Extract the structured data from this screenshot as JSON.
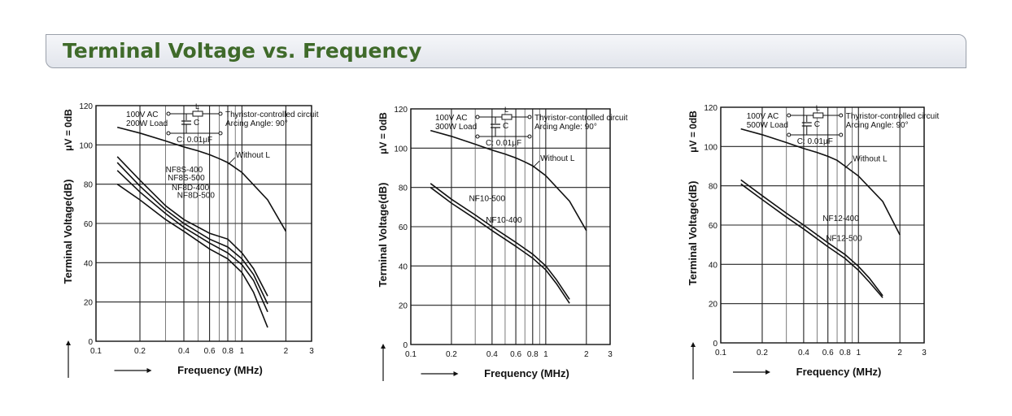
{
  "header": {
    "title": "Terminal Voltage vs. Frequency"
  },
  "chart_data": [
    {
      "type": "line",
      "xscale": "log",
      "xlim": [
        0.1,
        3
      ],
      "ylim": [
        0,
        120
      ],
      "x_ticks": [
        "0.1",
        "0.2",
        "0.4",
        "0.6",
        "0.8",
        "1",
        "2",
        "3"
      ],
      "y_ticks": [
        "0",
        "20",
        "40",
        "60",
        "80",
        "100",
        "120"
      ],
      "xlabel": "Frequency (MHz)",
      "ylabel": "Terminal Voltage(dB)",
      "ylabel_unit": "μV = 0dB",
      "circuit": {
        "source": "100V AC",
        "load": "200W Load",
        "l_label": "L",
        "c_label": "C",
        "c_value": "C: 0.01μF",
        "desc1": "Thyristor-controlled circuit",
        "desc2": "Arcing Angle: 90°"
      },
      "series": [
        {
          "name": "Without L",
          "x": [
            0.14,
            0.2,
            0.3,
            0.4,
            0.5,
            0.6,
            0.7,
            0.8,
            1.0,
            1.5,
            2.0
          ],
          "y": [
            109,
            106,
            102,
            99,
            97,
            95,
            93,
            91,
            86,
            72,
            56
          ]
        },
        {
          "name": "NF8S-400",
          "x": [
            0.14,
            0.2,
            0.3,
            0.4,
            0.6,
            0.8,
            1.0,
            1.2,
            1.5
          ],
          "y": [
            94,
            82,
            69,
            62,
            55,
            52,
            45,
            37,
            23
          ]
        },
        {
          "name": "NF8S-500",
          "x": [
            0.14,
            0.2,
            0.3,
            0.4,
            0.6,
            0.8,
            1.0,
            1.2,
            1.5
          ],
          "y": [
            91,
            79,
            67,
            60,
            52,
            48,
            42,
            34,
            19
          ]
        },
        {
          "name": "NF8D-400",
          "x": [
            0.14,
            0.2,
            0.3,
            0.4,
            0.6,
            0.8,
            1.0,
            1.2,
            1.5
          ],
          "y": [
            87,
            76,
            65,
            58,
            50,
            45,
            39,
            31,
            15
          ]
        },
        {
          "name": "NF8D-500",
          "x": [
            0.14,
            0.2,
            0.3,
            0.4,
            0.6,
            0.8,
            1.0,
            1.2,
            1.5
          ],
          "y": [
            80,
            72,
            62,
            56,
            47,
            42,
            35,
            25,
            7
          ]
        }
      ]
    },
    {
      "type": "line",
      "xscale": "log",
      "xlim": [
        0.1,
        3
      ],
      "ylim": [
        0,
        120
      ],
      "x_ticks": [
        "0.1",
        "0.2",
        "0.4",
        "0.6",
        "0.8",
        "1",
        "2",
        "3"
      ],
      "y_ticks": [
        "0",
        "20",
        "40",
        "60",
        "80",
        "100",
        "120"
      ],
      "xlabel": "Frequency (MHz)",
      "ylabel": "Terminal Voltage(dB)",
      "ylabel_unit": "μV = 0dB",
      "circuit": {
        "source": "100V AC",
        "load": "300W Load",
        "l_label": "L",
        "c_label": "C",
        "c_value": "C: 0.01μF",
        "desc1": "Thyristor-controlled circuit",
        "desc2": "Arcing Angle: 90°"
      },
      "series": [
        {
          "name": "Without L",
          "x": [
            0.14,
            0.2,
            0.3,
            0.4,
            0.5,
            0.6,
            0.7,
            0.8,
            1.0,
            1.5,
            2.0
          ],
          "y": [
            109,
            106,
            102,
            99,
            97,
            95,
            93,
            91,
            86,
            73,
            58
          ]
        },
        {
          "name": "NF10-500",
          "x": [
            0.14,
            0.2,
            0.3,
            0.4,
            0.6,
            0.8,
            1.0,
            1.2,
            1.5
          ],
          "y": [
            82,
            74,
            66,
            60,
            52,
            46,
            40,
            33,
            23
          ]
        },
        {
          "name": "NF10-400",
          "x": [
            0.14,
            0.2,
            0.3,
            0.4,
            0.6,
            0.8,
            1.0,
            1.2,
            1.5
          ],
          "y": [
            80,
            72,
            64,
            58,
            50,
            44,
            38,
            31,
            21
          ]
        }
      ]
    },
    {
      "type": "line",
      "xscale": "log",
      "xlim": [
        0.1,
        3
      ],
      "ylim": [
        0,
        120
      ],
      "x_ticks": [
        "0.1",
        "0.2",
        "0.4",
        "0.6",
        "0.8",
        "1",
        "2",
        "3"
      ],
      "y_ticks": [
        "0",
        "20",
        "40",
        "60",
        "80",
        "100",
        "120"
      ],
      "xlabel": "Frequency (MHz)",
      "ylabel": "Terminal Voltage(dB)",
      "ylabel_unit": "μV = 0dB",
      "circuit": {
        "source": "100V AC",
        "load": "500W Load",
        "l_label": "L",
        "c_label": "C",
        "c_value": "C: 0.01μF",
        "desc1": "Thyristor-controlled circuit",
        "desc2": "Arcing Angle: 90°"
      },
      "series": [
        {
          "name": "Without L",
          "x": [
            0.14,
            0.2,
            0.3,
            0.4,
            0.5,
            0.6,
            0.7,
            0.8,
            1.0,
            1.5,
            2.0
          ],
          "y": [
            109,
            106,
            102,
            99,
            97,
            95,
            93,
            90,
            85,
            72,
            55
          ]
        },
        {
          "name": "NF12-400",
          "x": [
            0.14,
            0.2,
            0.3,
            0.4,
            0.6,
            0.8,
            1.0,
            1.2,
            1.5
          ],
          "y": [
            83,
            75,
            66,
            60,
            51,
            45,
            39,
            33,
            24
          ]
        },
        {
          "name": "NF12-500",
          "x": [
            0.14,
            0.2,
            0.3,
            0.4,
            0.6,
            0.8,
            1.0,
            1.2,
            1.5
          ],
          "y": [
            81,
            73,
            64,
            58,
            49,
            43,
            37,
            31,
            23
          ]
        }
      ]
    }
  ]
}
